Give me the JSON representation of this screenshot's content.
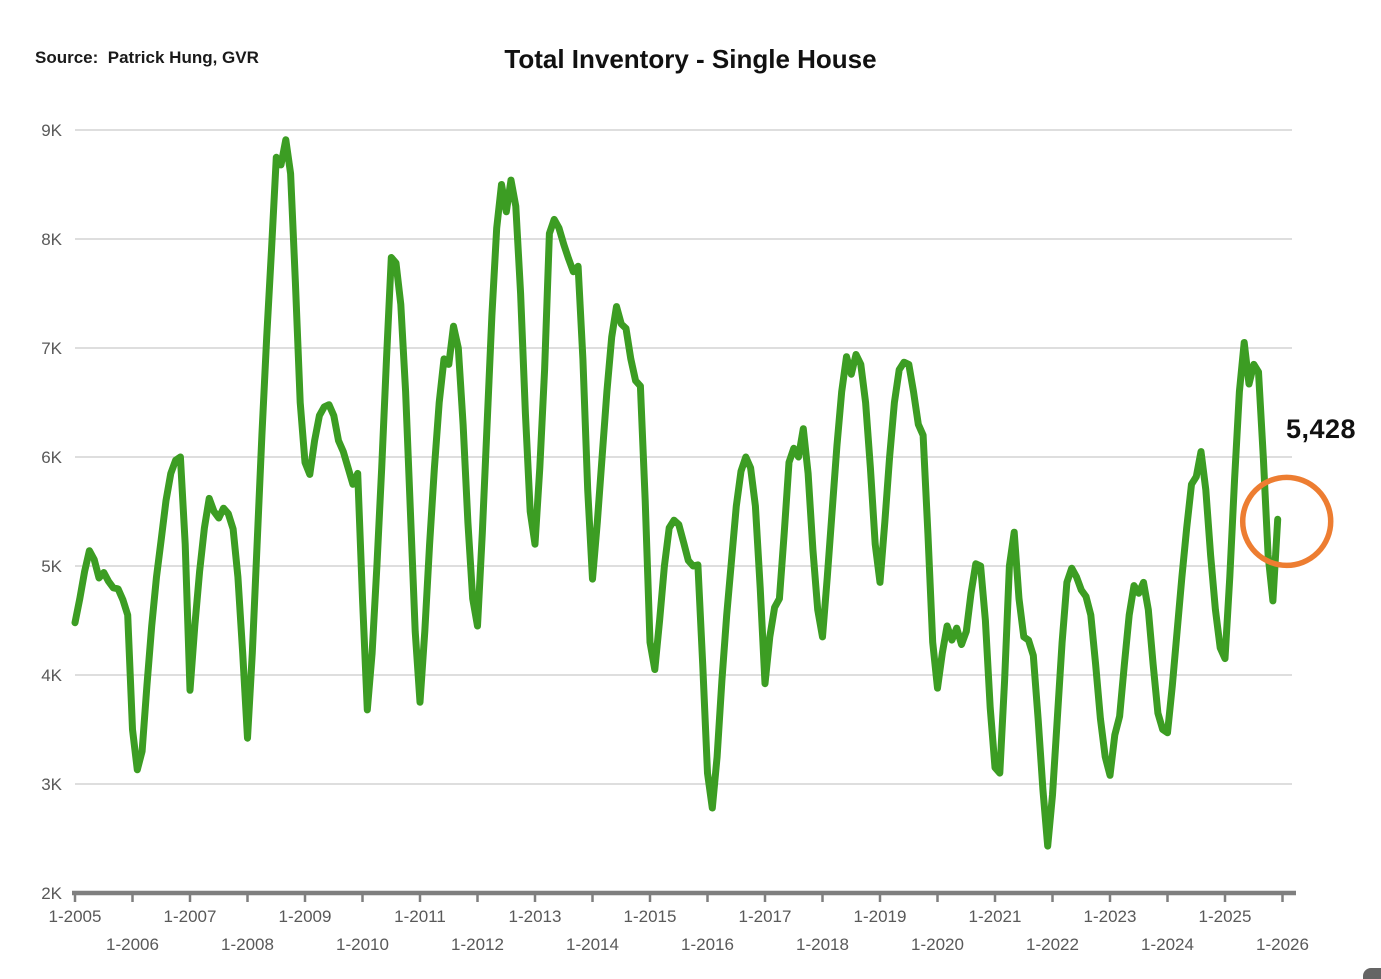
{
  "header": {
    "source_label": "Source:  Patrick Hung, GVR",
    "title": "Total Inventory - Single House"
  },
  "annotation": {
    "last_value_label": "5,428"
  },
  "colors": {
    "line": "#3c9d23",
    "highlight_circle": "#ed7d31",
    "grid": "#c9c9c9",
    "axis": "#7f7f7f",
    "tick_text": "#595959"
  },
  "chart_data": {
    "type": "line",
    "title": "Total Inventory - Single House",
    "series_name": "Total Inventory - Single House",
    "frequency": "monthly",
    "start_month": "2005-01",
    "end_month": "2025-12",
    "last_point": {
      "month": "2025-12",
      "value": 5428,
      "highlighted": true
    },
    "grid": "horizontal",
    "legend": "none",
    "y_axis": {
      "min": 2000,
      "max": 9000,
      "tick_labels": [
        "9K",
        "8K",
        "7K",
        "6K",
        "5K",
        "4K",
        "3K",
        "2K"
      ],
      "tick_values": [
        9000,
        8000,
        7000,
        6000,
        5000,
        4000,
        3000,
        2000
      ]
    },
    "x_axis": {
      "tick_labels": [
        "1-2005",
        "1-2006",
        "1-2007",
        "1-2008",
        "1-2009",
        "1-2010",
        "1-2011",
        "1-2012",
        "1-2013",
        "1-2014",
        "1-2015",
        "1-2016",
        "1-2017",
        "1-2018",
        "1-2019",
        "1-2020",
        "1-2021",
        "1-2022",
        "1-2023",
        "1-2024",
        "1-2025",
        "1-2026"
      ]
    },
    "values": [
      4480,
      4700,
      4950,
      5140,
      5060,
      4890,
      4940,
      4860,
      4800,
      4790,
      4690,
      4550,
      3500,
      3130,
      3300,
      3900,
      4450,
      4900,
      5250,
      5600,
      5850,
      5970,
      6000,
      5200,
      3860,
      4450,
      4950,
      5350,
      5620,
      5500,
      5440,
      5530,
      5480,
      5340,
      4900,
      4200,
      3420,
      4200,
      5200,
      6200,
      7100,
      7900,
      8750,
      8680,
      8910,
      8600,
      7600,
      6500,
      5950,
      5840,
      6150,
      6380,
      6460,
      6480,
      6380,
      6150,
      6050,
      5900,
      5750,
      5850,
      4700,
      3680,
      4200,
      5000,
      5900,
      6900,
      7830,
      7780,
      7400,
      6600,
      5500,
      4400,
      3750,
      4400,
      5200,
      5900,
      6500,
      6900,
      6850,
      7200,
      7000,
      6300,
      5400,
      4700,
      4450,
      5300,
      6300,
      7300,
      8100,
      8500,
      8250,
      8540,
      8300,
      7500,
      6400,
      5500,
      5200,
      5900,
      6800,
      8050,
      8180,
      8100,
      7950,
      7820,
      7700,
      7750,
      6900,
      5700,
      4880,
      5400,
      6000,
      6600,
      7100,
      7380,
      7220,
      7180,
      6900,
      6700,
      6650,
      5600,
      4300,
      4050,
      4500,
      5000,
      5350,
      5420,
      5380,
      5220,
      5050,
      5000,
      5010,
      4100,
      3100,
      2780,
      3250,
      3950,
      4550,
      5050,
      5550,
      5870,
      6000,
      5900,
      5550,
      4800,
      3920,
      4350,
      4620,
      4700,
      5300,
      5950,
      6080,
      6000,
      6260,
      5850,
      5150,
      4600,
      4350,
      4900,
      5500,
      6100,
      6600,
      6920,
      6760,
      6940,
      6850,
      6500,
      5900,
      5200,
      4850,
      5400,
      6000,
      6500,
      6800,
      6870,
      6850,
      6600,
      6300,
      6200,
      5300,
      4300,
      3880,
      4200,
      4450,
      4320,
      4430,
      4280,
      4400,
      4750,
      5020,
      5000,
      4500,
      3700,
      3150,
      3100,
      3950,
      5000,
      5310,
      4700,
      4350,
      4320,
      4180,
      3600,
      2950,
      2430,
      2900,
      3600,
      4300,
      4850,
      4980,
      4900,
      4780,
      4720,
      4550,
      4100,
      3600,
      3250,
      3080,
      3450,
      3620,
      4100,
      4550,
      4820,
      4750,
      4850,
      4600,
      4100,
      3650,
      3500,
      3470,
      3900,
      4400,
      4900,
      5350,
      5750,
      5820,
      6050,
      5700,
      5100,
      4600,
      4250,
      4150,
      4900,
      5800,
      6600,
      7050,
      6670,
      6850,
      6780,
      6000,
      5100,
      4680,
      5428
    ]
  }
}
